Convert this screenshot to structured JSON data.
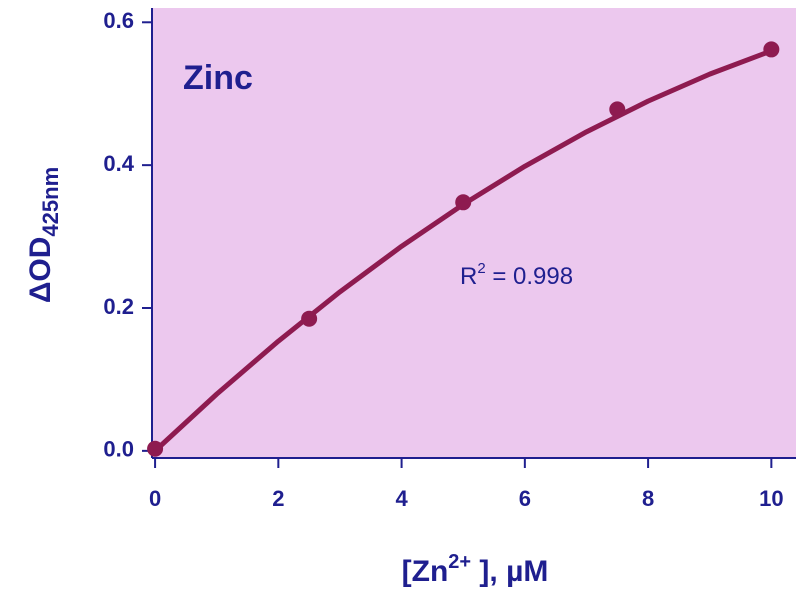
{
  "chart_data": {
    "type": "scatter",
    "annotations": [
      "Zinc",
      [
        "R",
        "2",
        " = 0.998"
      ]
    ],
    "xlabel": [
      "[Zn",
      "2+",
      " ], µM"
    ],
    "ylabel": [
      "ΔOD",
      "425nm"
    ],
    "x": [
      0,
      2.5,
      5,
      7.5,
      10
    ],
    "series": [
      {
        "color": "#8e1b50",
        "values": [
          0.003,
          0.185,
          0.348,
          0.478,
          0.562
        ]
      },
      {
        "color": "#8e1b50",
        "x": [
          0,
          1,
          2,
          3,
          4,
          5,
          6,
          7,
          8,
          9,
          10
        ],
        "values": [
          0,
          0.0794,
          0.1536,
          0.2226,
          0.2864,
          0.345,
          0.3984,
          0.4466,
          0.4896,
          0.5274,
          0.56
        ],
        "style": "line"
      }
    ],
    "xlim": [
      -0.05,
      10.4
    ],
    "ylim": [
      -0.01,
      0.62
    ],
    "xticks": [
      0,
      2,
      4,
      6,
      8,
      10
    ],
    "yticks": [
      {
        "value": 0,
        "label": "0.0"
      },
      0.2,
      0.4,
      0.6
    ],
    "background": "#ecc8ee",
    "axis_color": "#1f1f8f"
  }
}
